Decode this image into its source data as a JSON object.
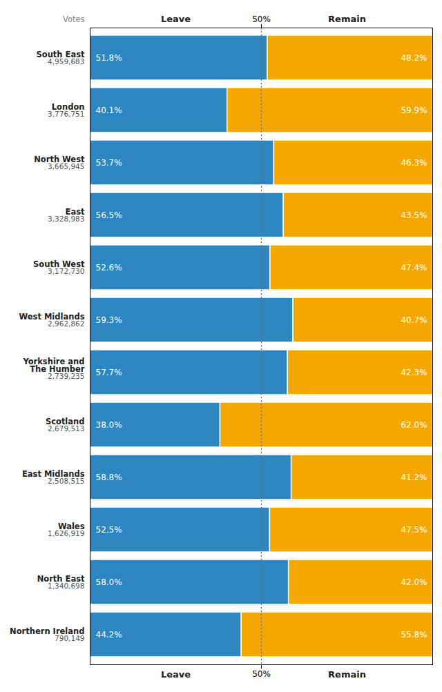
{
  "chart_data": {
    "type": "bar",
    "orientation": "horizontal",
    "stacked": true,
    "categories": [
      "South East",
      "London",
      "North West",
      "East",
      "South West",
      "West Midlands",
      "Yorkshire and\nThe Humber",
      "Scotland",
      "East Midlands",
      "Wales",
      "North East",
      "Northern Ireland"
    ],
    "votes_label": "Votes",
    "votes": [
      "4,959,683",
      "3,776,751",
      "3,665,945",
      "3,328,983",
      "3,172,730",
      "2,962,862",
      "2,739,235",
      "2,679,513",
      "2,508,515",
      "1,626,919",
      "1,340,698",
      "790,149"
    ],
    "series": [
      {
        "name": "Leave",
        "color": "#2E86C1",
        "values": [
          51.8,
          40.1,
          53.7,
          56.5,
          52.6,
          59.3,
          57.7,
          38.0,
          58.8,
          52.5,
          58.0,
          44.2
        ],
        "value_labels": [
          "51.8%",
          "40.1%",
          "53.7%",
          "56.5%",
          "52.6%",
          "59.3%",
          "57.7%",
          "38.0%",
          "58.8%",
          "52.5%",
          "58.0%",
          "44.2%"
        ]
      },
      {
        "name": "Remain",
        "color": "#F4A700",
        "values": [
          48.2,
          59.9,
          46.3,
          43.5,
          47.4,
          40.7,
          42.3,
          62.0,
          41.2,
          47.5,
          42.0,
          55.8
        ],
        "value_labels": [
          "48.2%",
          "59.9%",
          "46.3%",
          "43.5%",
          "47.4%",
          "40.7%",
          "42.3%",
          "62.0%",
          "41.2%",
          "47.5%",
          "42.0%",
          "55.8%"
        ]
      }
    ],
    "xlim": [
      0,
      100
    ],
    "xticks": [
      {
        "value": 50,
        "label": "50%"
      }
    ],
    "data_labels": true,
    "grid": false
  }
}
